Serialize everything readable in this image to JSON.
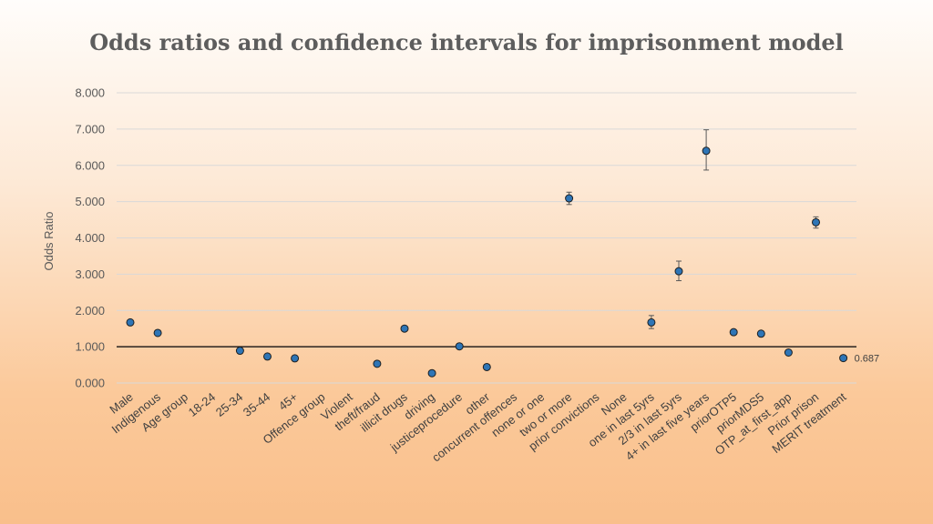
{
  "chart_data": {
    "type": "scatter",
    "title": "Odds ratios and confidence intervals for imprisonment model",
    "xlabel": "",
    "ylabel": "Odds Ratio",
    "ylim": [
      0,
      8
    ],
    "yticks": [
      "0.000",
      "1.000",
      "2.000",
      "3.000",
      "4.000",
      "5.000",
      "6.000",
      "7.000",
      "8.000"
    ],
    "reference_line": 1,
    "grid": true,
    "categories": [
      "Male",
      "Indigenous",
      "Age group",
      "18-24",
      "25-34",
      "35-44",
      "45+",
      "Offence group",
      "Violent",
      "theft/fraud",
      "illicit drugs",
      "driving",
      "justiceprocedure",
      "other",
      "concurrent offences",
      "none or one",
      "two or more",
      "prior convictions",
      "None",
      "one in last 5yrs",
      "2/3 in last 5yrs",
      "4+ in last five years",
      "priorOTP5",
      "priorMDS5",
      "OTP_at_first_app",
      "Prior prison",
      "MERIT treatment"
    ],
    "values": [
      1.67,
      1.38,
      null,
      null,
      0.89,
      0.73,
      0.68,
      null,
      null,
      0.53,
      1.5,
      0.27,
      1.01,
      0.44,
      null,
      null,
      5.09,
      null,
      null,
      1.67,
      3.08,
      6.4,
      1.4,
      1.36,
      0.84,
      4.43,
      0.687
    ],
    "ci_low": [
      null,
      null,
      null,
      null,
      null,
      null,
      null,
      null,
      null,
      null,
      null,
      null,
      null,
      null,
      null,
      null,
      4.92,
      null,
      null,
      1.5,
      2.82,
      5.87,
      null,
      null,
      null,
      4.27,
      null
    ],
    "ci_high": [
      null,
      null,
      null,
      null,
      null,
      null,
      null,
      null,
      null,
      null,
      null,
      null,
      null,
      null,
      null,
      null,
      5.26,
      null,
      null,
      1.86,
      3.36,
      6.98,
      null,
      null,
      null,
      4.58,
      null
    ],
    "data_labels": [
      null,
      null,
      null,
      null,
      null,
      null,
      null,
      null,
      null,
      null,
      null,
      null,
      null,
      null,
      null,
      null,
      null,
      null,
      null,
      null,
      null,
      null,
      null,
      null,
      null,
      null,
      "0.687"
    ],
    "marker_color": "#2e75b6",
    "marker_edge": "#1f1f1f"
  }
}
